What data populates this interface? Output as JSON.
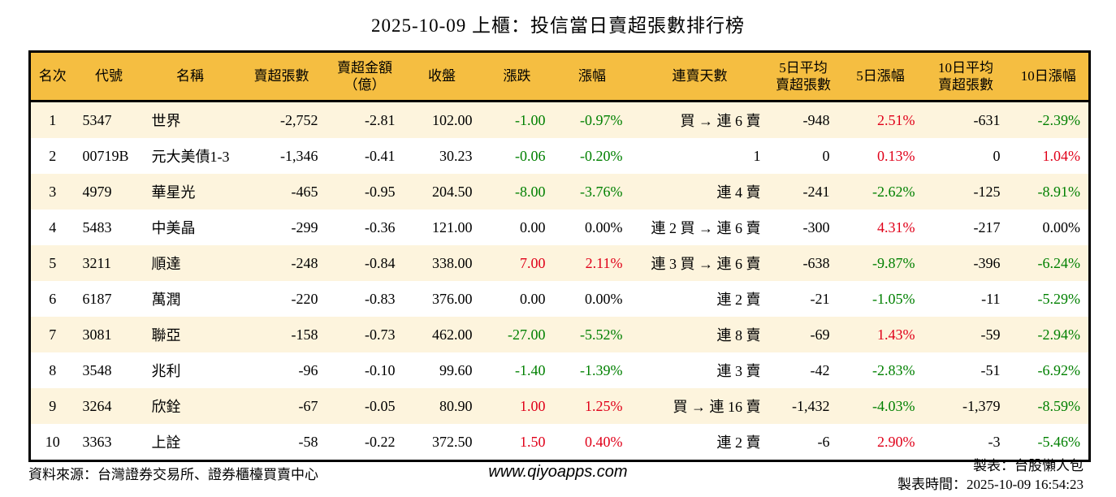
{
  "title": "2025-10-09 上櫃：投信當日賣超張數排行榜",
  "colors": {
    "up_red": "#e00019",
    "down_green": "#008000",
    "neutral_black": "#000000",
    "header_bg": "#f5be41",
    "stripe_bg": "#fdf4dd",
    "table_border": "#000000"
  },
  "chart_data": {
    "type": "table",
    "title": "2025-10-09 上櫃：投信當日賣超張數排行榜",
    "columns": [
      "名次",
      "代號",
      "名稱",
      "賣超張數",
      "賣超金額\n（億）",
      "收盤",
      "漲跌",
      "漲幅",
      "連賣天數",
      "5日平均\n賣超張數",
      "5日漲幅",
      "10日平均\n賣超張數",
      "10日漲幅"
    ],
    "rows": [
      [
        {
          "t": "1"
        },
        {
          "t": "5347"
        },
        {
          "t": "世界"
        },
        {
          "t": "-2,752"
        },
        {
          "t": "-2.81"
        },
        {
          "t": "102.00"
        },
        {
          "t": "-1.00",
          "c": "green"
        },
        {
          "t": "-0.97%",
          "c": "green"
        },
        {
          "t": "買 → 連 6 賣"
        },
        {
          "t": "-948"
        },
        {
          "t": "2.51%",
          "c": "red"
        },
        {
          "t": "-631"
        },
        {
          "t": "-2.39%",
          "c": "green"
        }
      ],
      [
        {
          "t": "2"
        },
        {
          "t": "00719B"
        },
        {
          "t": "元大美債1-3"
        },
        {
          "t": "-1,346"
        },
        {
          "t": "-0.41"
        },
        {
          "t": "30.23"
        },
        {
          "t": "-0.06",
          "c": "green"
        },
        {
          "t": "-0.20%",
          "c": "green"
        },
        {
          "t": "1"
        },
        {
          "t": "0"
        },
        {
          "t": "0.13%",
          "c": "red"
        },
        {
          "t": "0"
        },
        {
          "t": "1.04%",
          "c": "red"
        }
      ],
      [
        {
          "t": "3"
        },
        {
          "t": "4979"
        },
        {
          "t": "華星光"
        },
        {
          "t": "-465"
        },
        {
          "t": "-0.95"
        },
        {
          "t": "204.50"
        },
        {
          "t": "-8.00",
          "c": "green"
        },
        {
          "t": "-3.76%",
          "c": "green"
        },
        {
          "t": "連 4 賣"
        },
        {
          "t": "-241"
        },
        {
          "t": "-2.62%",
          "c": "green"
        },
        {
          "t": "-125"
        },
        {
          "t": "-8.91%",
          "c": "green"
        }
      ],
      [
        {
          "t": "4"
        },
        {
          "t": "5483"
        },
        {
          "t": "中美晶"
        },
        {
          "t": "-299"
        },
        {
          "t": "-0.36"
        },
        {
          "t": "121.00"
        },
        {
          "t": "0.00",
          "c": "black"
        },
        {
          "t": "0.00%",
          "c": "black"
        },
        {
          "t": "連 2 買 → 連 6 賣"
        },
        {
          "t": "-300"
        },
        {
          "t": "4.31%",
          "c": "red"
        },
        {
          "t": "-217"
        },
        {
          "t": "0.00%",
          "c": "black"
        }
      ],
      [
        {
          "t": "5"
        },
        {
          "t": "3211"
        },
        {
          "t": "順達"
        },
        {
          "t": "-248"
        },
        {
          "t": "-0.84"
        },
        {
          "t": "338.00"
        },
        {
          "t": "7.00",
          "c": "red"
        },
        {
          "t": "2.11%",
          "c": "red"
        },
        {
          "t": "連 3 買 → 連 6 賣"
        },
        {
          "t": "-638"
        },
        {
          "t": "-9.87%",
          "c": "green"
        },
        {
          "t": "-396"
        },
        {
          "t": "-6.24%",
          "c": "green"
        }
      ],
      [
        {
          "t": "6"
        },
        {
          "t": "6187"
        },
        {
          "t": "萬潤"
        },
        {
          "t": "-220"
        },
        {
          "t": "-0.83"
        },
        {
          "t": "376.00"
        },
        {
          "t": "0.00",
          "c": "black"
        },
        {
          "t": "0.00%",
          "c": "black"
        },
        {
          "t": "連 2 賣"
        },
        {
          "t": "-21"
        },
        {
          "t": "-1.05%",
          "c": "green"
        },
        {
          "t": "-11"
        },
        {
          "t": "-5.29%",
          "c": "green"
        }
      ],
      [
        {
          "t": "7"
        },
        {
          "t": "3081"
        },
        {
          "t": "聯亞"
        },
        {
          "t": "-158"
        },
        {
          "t": "-0.73"
        },
        {
          "t": "462.00"
        },
        {
          "t": "-27.00",
          "c": "green"
        },
        {
          "t": "-5.52%",
          "c": "green"
        },
        {
          "t": "連 8 賣"
        },
        {
          "t": "-69"
        },
        {
          "t": "1.43%",
          "c": "red"
        },
        {
          "t": "-59"
        },
        {
          "t": "-2.94%",
          "c": "green"
        }
      ],
      [
        {
          "t": "8"
        },
        {
          "t": "3548"
        },
        {
          "t": "兆利"
        },
        {
          "t": "-96"
        },
        {
          "t": "-0.10"
        },
        {
          "t": "99.60"
        },
        {
          "t": "-1.40",
          "c": "green"
        },
        {
          "t": "-1.39%",
          "c": "green"
        },
        {
          "t": "連 3 賣"
        },
        {
          "t": "-42"
        },
        {
          "t": "-2.83%",
          "c": "green"
        },
        {
          "t": "-51"
        },
        {
          "t": "-6.92%",
          "c": "green"
        }
      ],
      [
        {
          "t": "9"
        },
        {
          "t": "3264"
        },
        {
          "t": "欣銓"
        },
        {
          "t": "-67"
        },
        {
          "t": "-0.05"
        },
        {
          "t": "80.90"
        },
        {
          "t": "1.00",
          "c": "red"
        },
        {
          "t": "1.25%",
          "c": "red"
        },
        {
          "t": "買 → 連 16 賣"
        },
        {
          "t": "-1,432"
        },
        {
          "t": "-4.03%",
          "c": "green"
        },
        {
          "t": "-1,379"
        },
        {
          "t": "-8.59%",
          "c": "green"
        }
      ],
      [
        {
          "t": "10"
        },
        {
          "t": "3363"
        },
        {
          "t": "上詮"
        },
        {
          "t": "-58"
        },
        {
          "t": "-0.22"
        },
        {
          "t": "372.50"
        },
        {
          "t": "1.50",
          "c": "red"
        },
        {
          "t": "0.40%",
          "c": "red"
        },
        {
          "t": "連 2 賣"
        },
        {
          "t": "-6"
        },
        {
          "t": "2.90%",
          "c": "red"
        },
        {
          "t": "-3"
        },
        {
          "t": "-5.46%",
          "c": "green"
        }
      ]
    ]
  },
  "footer": {
    "source": "資料來源：台灣證券交易所、證券櫃檯買賣中心",
    "website": "www.qiyoapps.com",
    "author": "製表：台股懶人包",
    "generated": "製表時間：2025-10-09 16:54:23"
  }
}
